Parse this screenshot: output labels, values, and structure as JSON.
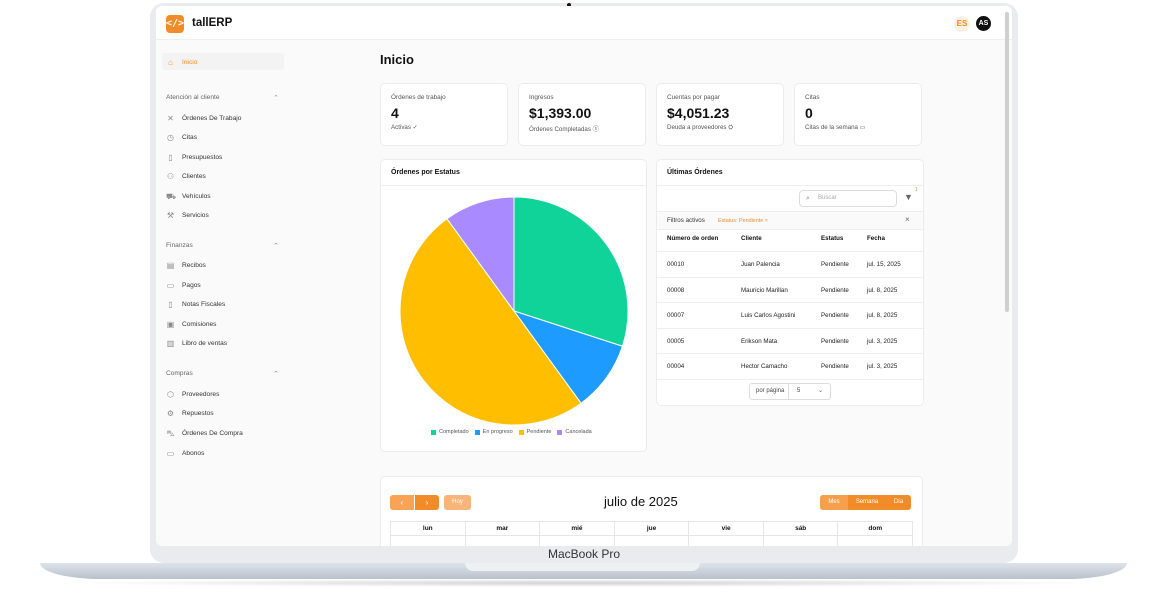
{
  "device": {
    "label": "MacBook Pro"
  },
  "header": {
    "logo_glyph": "</>",
    "app_name": "tallERP",
    "language": "ES",
    "avatar_initials": "AS"
  },
  "sidebar": {
    "home": {
      "label": "Inicio",
      "icon": "home-icon"
    },
    "sections": [
      {
        "title": "Atención al cliente",
        "items": [
          {
            "label": "Órdenes De Trabajo",
            "icon": "wrench-icon"
          },
          {
            "label": "Citas",
            "icon": "clock-icon"
          },
          {
            "label": "Presupuestos",
            "icon": "document-icon"
          },
          {
            "label": "Clientes",
            "icon": "users-icon"
          },
          {
            "label": "Vehículos",
            "icon": "truck-icon"
          },
          {
            "label": "Servicios",
            "icon": "tool-icon"
          }
        ]
      },
      {
        "title": "Finanzas",
        "items": [
          {
            "label": "Recibos",
            "icon": "receipt-icon"
          },
          {
            "label": "Pagos",
            "icon": "card-icon"
          },
          {
            "label": "Notas Fiscales",
            "icon": "document-icon"
          },
          {
            "label": "Comisiones",
            "icon": "money-icon"
          },
          {
            "label": "Libro de ventas",
            "icon": "book-icon"
          }
        ]
      },
      {
        "title": "Compras",
        "items": [
          {
            "label": "Proveedores",
            "icon": "box-icon"
          },
          {
            "label": "Repuestos",
            "icon": "gear-icon"
          },
          {
            "label": "Órdenes De Compra",
            "icon": "cart-icon"
          },
          {
            "label": "Abonos",
            "icon": "wallet-icon"
          }
        ]
      }
    ]
  },
  "main": {
    "title": "Inicio",
    "stats": [
      {
        "label": "Órdenes de trabajo",
        "value": "4",
        "sub": "Activas ✓"
      },
      {
        "label": "Ingresos",
        "value": "$1,393.00",
        "sub": "Órdenes Completadas ⓢ"
      },
      {
        "label": "Cuentas por pagar",
        "value": "$4,051.23",
        "sub": "Deuda a proveedores ⛭"
      },
      {
        "label": "Citas",
        "value": "0",
        "sub": "Citas de la semana ▭"
      }
    ],
    "pie_card": {
      "title": "Órdenes por Estatus"
    },
    "orders_card": {
      "title": "Últimas Órdenes",
      "search_placeholder": "Buscar",
      "filter_count": "1",
      "filters_label": "Filtros activos",
      "filter_chip": "Estatus: Pendiente ×",
      "columns": [
        "Número de orden",
        "Cliente",
        "Estatus",
        "Fecha"
      ],
      "rows": [
        [
          "00010",
          "Juan Palencia",
          "Pendiente",
          "jul. 15, 2025"
        ],
        [
          "00008",
          "Mauricio Marillan",
          "Pendiente",
          "jul. 8, 2025"
        ],
        [
          "00007",
          "Luis Carlos Agostini",
          "Pendiente",
          "jul. 8, 2025"
        ],
        [
          "00005",
          "Erikson Mata",
          "Pendiente",
          "jul. 3, 2025"
        ],
        [
          "00004",
          "Hector Camacho",
          "Pendiente",
          "jul. 3, 2025"
        ]
      ],
      "per_page_label": "por página",
      "per_page_value": "5"
    },
    "calendar": {
      "prev": "‹",
      "next": "›",
      "today": "Hoy",
      "title": "julio de 2025",
      "views": [
        "Mes",
        "Semana",
        "Día"
      ],
      "days": [
        "lun",
        "mar",
        "mié",
        "jue",
        "vie",
        "sáb",
        "dom"
      ]
    }
  },
  "chart_data": {
    "type": "pie",
    "categories": [
      "Completado",
      "En progreso",
      "Pendiente",
      "Cancelada"
    ],
    "values": [
      30,
      10,
      50,
      10
    ],
    "colors": [
      "#10d39a",
      "#1e9bff",
      "#ffbf00",
      "#a98bff"
    ]
  }
}
